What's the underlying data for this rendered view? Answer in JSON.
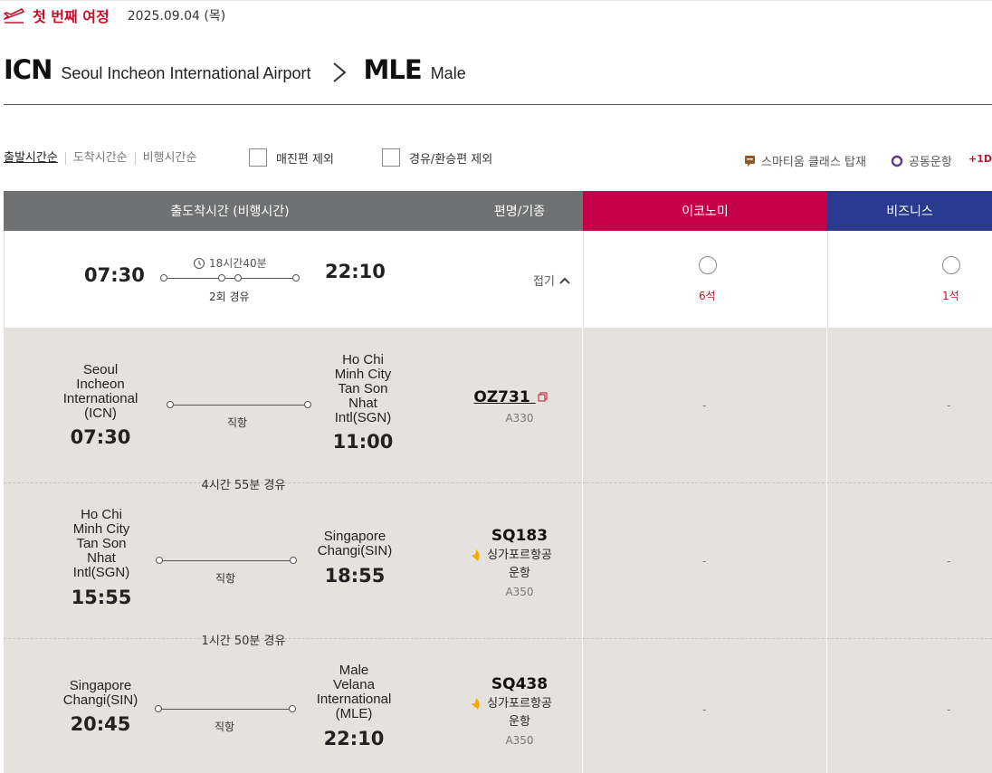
{
  "journey": {
    "label": "첫 번째 여정",
    "date": "2025.09.04 (목)"
  },
  "route": {
    "from_code": "ICN",
    "from_name": "Seoul Incheon International Airport",
    "to_code": "MLE",
    "to_name": "Male"
  },
  "filters": {
    "sort": [
      "출발시간순",
      "도착시간순",
      "비행시간순"
    ],
    "exclude_soldout": "매진편 제외",
    "exclude_transfer": "경유/환승편 제외",
    "legend_smartium": "스마티움 클래스 탑재",
    "legend_codeshare": "공동운항",
    "legend_nextday": "+1D"
  },
  "table_header": {
    "time": "출도착시간 (비행시간)",
    "flight": "편명/기종",
    "economy": "이코노미",
    "business": "비즈니스"
  },
  "summary": {
    "dep_time": "07:30",
    "arr_time": "22:10",
    "duration": "18시간40분",
    "stops": "2회 경유",
    "fold_label": "접기",
    "economy_seats": "6석",
    "business_seats": "1석"
  },
  "segments": [
    {
      "dep_airport": [
        "Seoul",
        "Incheon",
        "International",
        "(ICN)"
      ],
      "dep_time": "07:30",
      "arr_airport": [
        "Ho Chi",
        "Minh City",
        "Tan Son",
        "Nhat",
        "Intl(SGN)"
      ],
      "arr_time": "11:00",
      "type": "직항",
      "flight_no": "OZ731",
      "operator": "",
      "aircraft": "A330",
      "economy": "-",
      "business": "-"
    },
    {
      "dep_airport": [
        "Ho Chi",
        "Minh City",
        "Tan Son",
        "Nhat",
        "Intl(SGN)"
      ],
      "dep_time": "15:55",
      "arr_airport": [
        "Singapore",
        "Changi(SIN)"
      ],
      "arr_time": "18:55",
      "type": "직항",
      "flight_no": "SQ183",
      "operator": [
        "싱가포르항공",
        "운항"
      ],
      "aircraft": "A350",
      "economy": "-",
      "business": "-"
    },
    {
      "dep_airport": [
        "Singapore",
        "Changi(SIN)"
      ],
      "dep_time": "20:45",
      "arr_airport": [
        "Male",
        "Velana",
        "International",
        "(MLE)"
      ],
      "arr_time": "22:10",
      "type": "직항",
      "flight_no": "SQ438",
      "operator": [
        "싱가포르항공",
        "운항"
      ],
      "aircraft": "A350",
      "economy": "-",
      "business": "-"
    }
  ],
  "layovers": [
    "4시간 55분 경유",
    "1시간 50분 경유"
  ],
  "colors": {
    "brand_red": "#c8102e",
    "economy": "#c7004c",
    "business": "#2a3b8f",
    "header_gray": "#707172",
    "segment_bg": "#e5e2de"
  }
}
